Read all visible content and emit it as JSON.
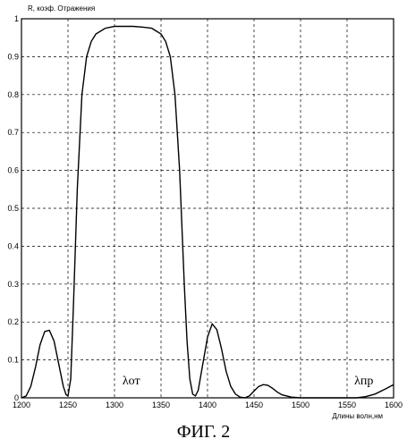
{
  "chart_data": {
    "type": "line",
    "ylabel": "R, коэф. Отражения",
    "xlabel": "Длины волн,нм",
    "xlim": [
      1200,
      1600
    ],
    "ylim": [
      0,
      1
    ],
    "x_ticks": [
      "1200",
      "1250",
      "1300",
      "1350",
      "1400",
      "1450",
      "1500",
      "1550",
      "1600"
    ],
    "y_ticks": [
      "0",
      "0.1",
      "0.2",
      "0.3",
      "0.4",
      "0.5",
      "0.6",
      "0.7",
      "0.8",
      "0.9",
      "1"
    ],
    "grid": true,
    "series": [
      {
        "x": [
          1200,
          1205,
          1210,
          1215,
          1220,
          1225,
          1230,
          1235,
          1240,
          1245,
          1248,
          1250,
          1253,
          1256,
          1260,
          1265,
          1270,
          1275,
          1280,
          1290,
          1300,
          1310,
          1320,
          1330,
          1340,
          1350,
          1355,
          1360,
          1365,
          1370,
          1375,
          1378,
          1381,
          1384,
          1387,
          1390,
          1395,
          1400,
          1405,
          1410,
          1415,
          1420,
          1425,
          1430,
          1435,
          1440,
          1445,
          1450,
          1455,
          1460,
          1465,
          1470,
          1475,
          1480,
          1490,
          1500,
          1510,
          1520,
          1530,
          1540,
          1550,
          1560,
          1570,
          1580,
          1590,
          1600
        ],
        "y": [
          0.0,
          0.005,
          0.03,
          0.08,
          0.14,
          0.175,
          0.178,
          0.15,
          0.09,
          0.03,
          0.008,
          0.005,
          0.05,
          0.25,
          0.55,
          0.8,
          0.9,
          0.94,
          0.96,
          0.975,
          0.98,
          0.98,
          0.98,
          0.978,
          0.975,
          0.96,
          0.94,
          0.9,
          0.8,
          0.6,
          0.3,
          0.15,
          0.05,
          0.01,
          0.005,
          0.02,
          0.09,
          0.16,
          0.195,
          0.18,
          0.13,
          0.07,
          0.03,
          0.01,
          0.002,
          0.0,
          0.005,
          0.018,
          0.03,
          0.035,
          0.033,
          0.025,
          0.015,
          0.008,
          0.002,
          0.0,
          0.0,
          0.0,
          0.0,
          0.0,
          0.0,
          0.0,
          0.003,
          0.01,
          0.022,
          0.035
        ]
      }
    ],
    "annotations": [
      {
        "text": "λот",
        "x": 1318,
        "y": 0.035
      },
      {
        "text": "λпр",
        "x": 1568,
        "y": 0.035
      }
    ]
  },
  "caption": "ФИГ. 2"
}
